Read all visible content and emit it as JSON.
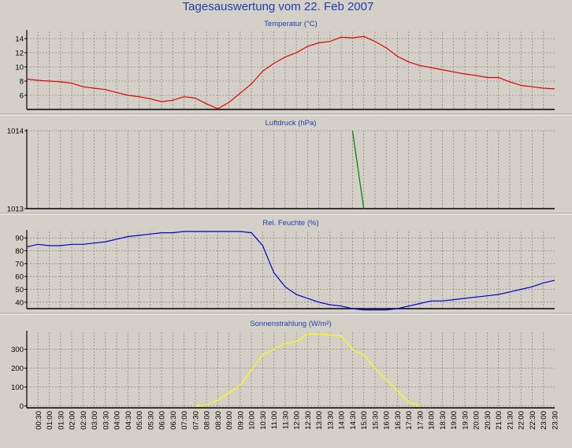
{
  "page": {
    "title": "Tagesauswertung vom 22. Feb 2007"
  },
  "colors": {
    "background": "#d4d0c8",
    "plot_background": "#d4d0c8",
    "title": "#1f3fae",
    "grid": "#8a8a8a",
    "axis": "#000000",
    "separator": "#ffffff"
  },
  "x_ticks": [
    "00:30",
    "01:00",
    "01:30",
    "02:00",
    "02:30",
    "03:00",
    "03:30",
    "04:00",
    "04:30",
    "05:00",
    "05:30",
    "06:00",
    "06:30",
    "07:00",
    "07:30",
    "08:00",
    "08:30",
    "09:00",
    "09:30",
    "10:00",
    "10:30",
    "11:00",
    "11:30",
    "12:00",
    "12:30",
    "13:00",
    "13:30",
    "14:00",
    "14:30",
    "15:00",
    "15:30",
    "16:00",
    "16:30",
    "17:00",
    "17:30",
    "18:00",
    "18:30",
    "19:00",
    "19:30",
    "20:00",
    "20:30",
    "21:00",
    "21:30",
    "22:00",
    "22:30",
    "23:00",
    "23:30"
  ],
  "chart_data": [
    {
      "type": "line",
      "title": "Temperatur (°C)",
      "ylim": [
        4,
        15
      ],
      "yticks": [
        6,
        8,
        10,
        12,
        14
      ],
      "grid": true,
      "color": "#e00000",
      "series": [
        {
          "x": [
            0,
            1,
            2,
            3,
            4,
            5,
            6,
            7,
            8,
            9,
            10,
            11,
            12,
            13,
            14,
            15,
            16,
            17,
            18,
            19,
            20,
            21,
            22,
            23,
            24,
            25,
            26,
            27,
            28,
            29,
            30,
            31,
            32,
            33,
            34,
            35,
            36,
            37,
            38,
            39,
            40,
            41,
            42,
            43,
            44,
            45,
            46,
            47
          ],
          "values": [
            8.3,
            8.1,
            8.0,
            7.9,
            7.7,
            7.2,
            7.0,
            6.8,
            6.4,
            6.0,
            5.8,
            5.5,
            5.1,
            5.3,
            5.8,
            5.6,
            4.8,
            4.1,
            5.0,
            6.3,
            7.6,
            9.4,
            10.5,
            11.4,
            12.0,
            12.9,
            13.4,
            13.6,
            14.2,
            14.1,
            14.3,
            13.6,
            12.7,
            11.5,
            10.7,
            10.2,
            9.9,
            9.6,
            9.3,
            9.0,
            8.8,
            8.5,
            8.5,
            7.9,
            7.4,
            7.2,
            7.0,
            6.9
          ]
        }
      ]
    },
    {
      "type": "line",
      "title": "Luftdruck (hPa)",
      "ylim": [
        1013,
        1014
      ],
      "yticks": [
        1013,
        1014
      ],
      "grid": true,
      "color": "#008000",
      "series": [
        {
          "x": [
            29,
            30
          ],
          "values": [
            1014,
            1013
          ]
        }
      ]
    },
    {
      "type": "line",
      "title": "Rel. Feuchte (%)",
      "ylim": [
        35,
        95
      ],
      "yticks": [
        40,
        50,
        60,
        70,
        80,
        90
      ],
      "grid": true,
      "color": "#0000c8",
      "series": [
        {
          "x": [
            0,
            1,
            2,
            3,
            4,
            5,
            6,
            7,
            8,
            9,
            10,
            11,
            12,
            13,
            14,
            15,
            16,
            17,
            18,
            19,
            20,
            21,
            22,
            23,
            24,
            25,
            26,
            27,
            28,
            29,
            30,
            31,
            32,
            33,
            34,
            35,
            36,
            37,
            38,
            39,
            40,
            41,
            42,
            43,
            44,
            45,
            46,
            47
          ],
          "values": [
            83,
            85,
            84,
            84,
            85,
            85,
            86,
            87,
            89,
            91,
            92,
            93,
            94,
            94,
            95,
            95,
            95,
            95,
            95,
            95,
            94,
            84,
            63,
            52,
            46,
            43,
            40,
            38,
            37,
            35,
            34,
            34,
            34,
            35,
            37,
            39,
            41,
            41,
            42,
            43,
            44,
            45,
            46,
            48,
            50,
            52,
            55,
            57
          ]
        }
      ]
    },
    {
      "type": "line",
      "title": "Sonnenstrahlung (W/m²)",
      "ylim": [
        -10,
        390
      ],
      "yticks": [
        0,
        100,
        200,
        300
      ],
      "grid": true,
      "color": "#ffff00",
      "series": [
        {
          "x": [
            15,
            16,
            17,
            18,
            19,
            20,
            21,
            22,
            23,
            24,
            25,
            26,
            27,
            28,
            29,
            30,
            31,
            32,
            33,
            34,
            35
          ],
          "values": [
            0,
            5,
            30,
            70,
            110,
            190,
            270,
            300,
            330,
            340,
            380,
            380,
            375,
            370,
            300,
            270,
            200,
            140,
            80,
            20,
            0
          ]
        }
      ]
    }
  ]
}
